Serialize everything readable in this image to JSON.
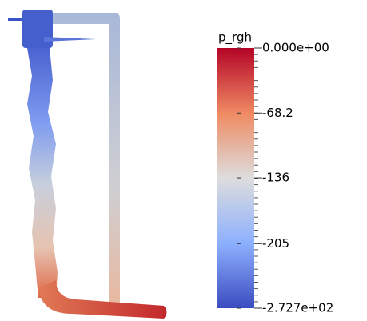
{
  "colorbar": {
    "title": "p_rgh",
    "range": [
      -272.7,
      0
    ],
    "ticks": [
      {
        "value": 0,
        "label": "0.000e+00"
      },
      -68.2,
      -136,
      -205,
      {
        "value": -272.7,
        "label": "-2.727e+02"
      }
    ]
  }
}
